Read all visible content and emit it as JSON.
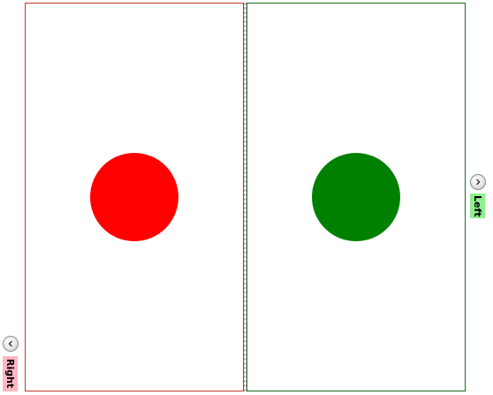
{
  "window": {
    "background": "#ffffff"
  },
  "panels": {
    "red": {
      "border_color": "#c0392b",
      "circle_color": "#ff0000"
    },
    "green": {
      "border_color": "#1e6b1e",
      "circle_color": "#008000"
    }
  },
  "expanders": {
    "right": {
      "label": "Right",
      "button_icon": "chevron-left-icon",
      "tab_color": "#ffb6c1"
    },
    "left": {
      "label": "Left",
      "button_icon": "chevron-right-icon",
      "tab_color": "#90ee90"
    }
  }
}
